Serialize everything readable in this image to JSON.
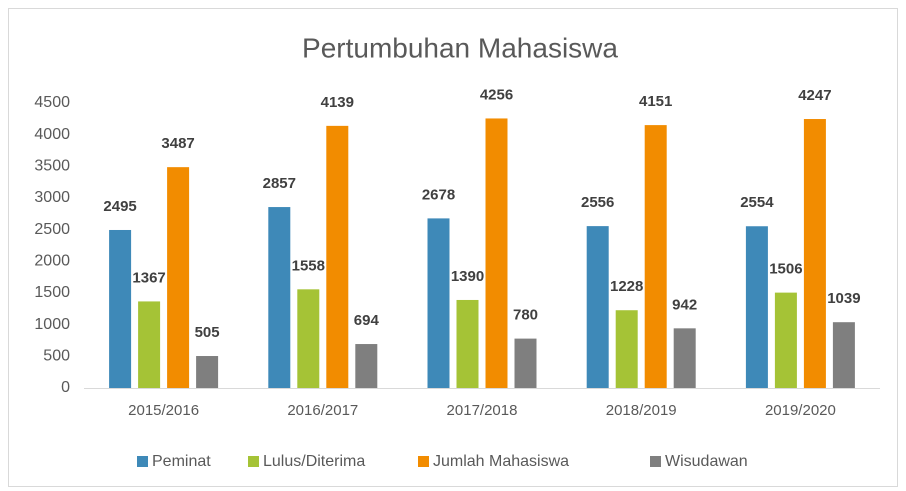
{
  "chart_data": {
    "type": "bar",
    "title": "Pertumbuhan Mahasiswa",
    "categories": [
      "2015/2016",
      "2016/2017",
      "2017/2018",
      "2018/2019",
      "2019/2020"
    ],
    "series": [
      {
        "name": "Peminat",
        "color": "#3e89b8",
        "values": [
          2495,
          2857,
          2678,
          2556,
          2554
        ]
      },
      {
        "name": "Lulus/Diterima",
        "color": "#a5c336",
        "values": [
          1367,
          1558,
          1390,
          1228,
          1506
        ]
      },
      {
        "name": "Jumlah Mahasiswa",
        "color": "#f28c00",
        "values": [
          3487,
          4139,
          4256,
          4151,
          4247
        ]
      },
      {
        "name": "Wisudawan",
        "color": "#7f7f7f",
        "values": [
          505,
          694,
          780,
          942,
          1039
        ]
      }
    ],
    "ylim": [
      0,
      4500
    ],
    "yticks": [
      0,
      500,
      1000,
      1500,
      2000,
      2500,
      3000,
      3500,
      4000,
      4500
    ],
    "grid": false,
    "legend": "bottom"
  }
}
